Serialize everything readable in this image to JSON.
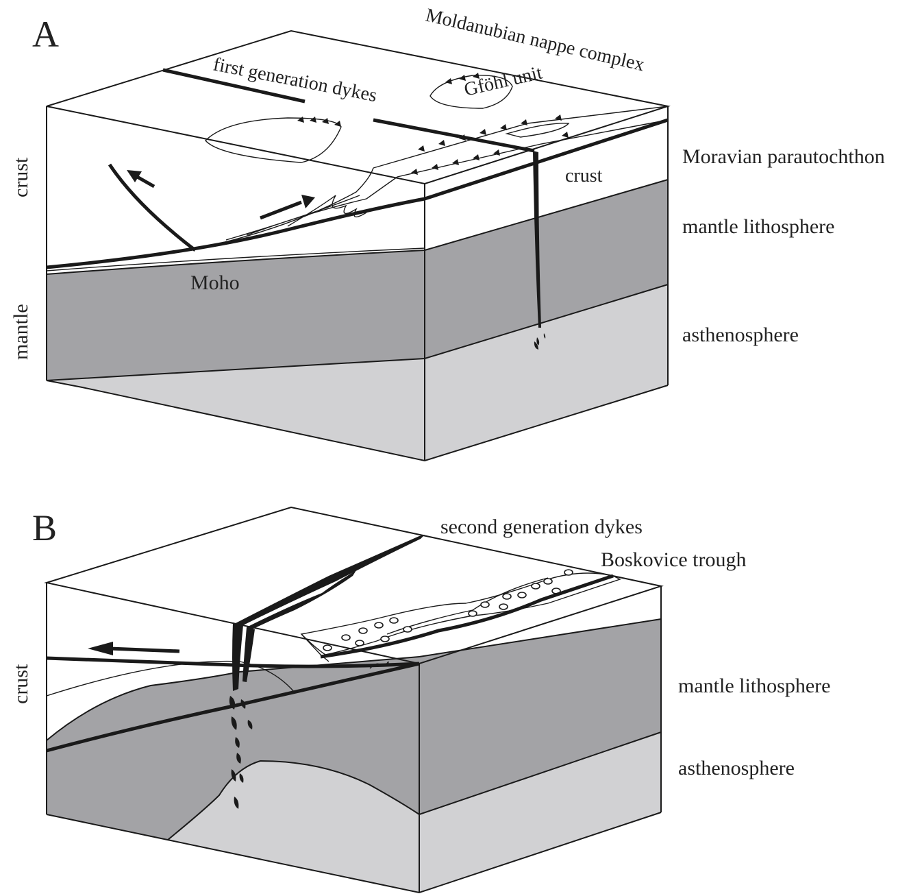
{
  "panel_a": {
    "letter": "A",
    "labels": {
      "moldanubian": "Moldanubian nappe complex",
      "gfohl": "Gföhl unit",
      "first_dykes": "first generation dykes",
      "moravian": "Moravian parautochthon",
      "crust_side": "crust",
      "crust_inner": "crust",
      "mantle_lith": "mantle lithosphere",
      "moho": "Moho",
      "mantle": "mantle",
      "astheno": "asthenosphere"
    }
  },
  "panel_b": {
    "letter": "B",
    "labels": {
      "second_dykes": "second generation dykes",
      "boskovice": "Boskovice trough",
      "crust_side": "crust",
      "mantle_lith": "mantle lithosphere",
      "astheno": "asthenosphere"
    }
  },
  "colors": {
    "mantle_lithosphere": "#a3a3a6",
    "asthenosphere": "#d1d1d3",
    "crust": "#ffffff",
    "line": "#1a1a1a"
  }
}
